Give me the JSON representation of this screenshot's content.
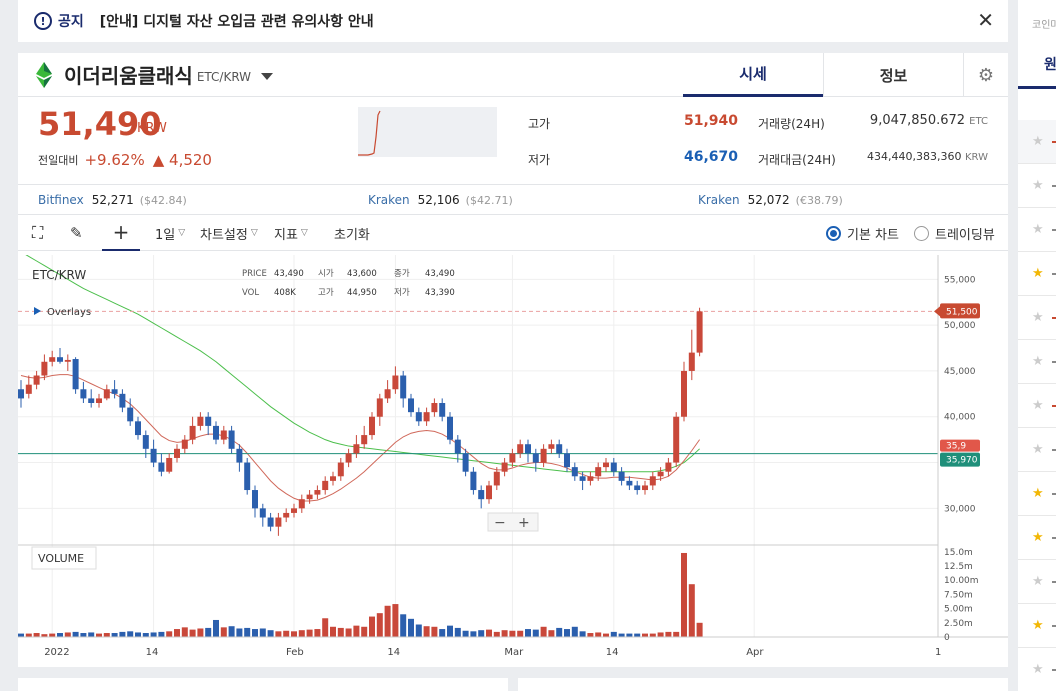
{
  "notice": {
    "label": "공지",
    "text": "[안내] 디지털 자산 오입금 관련 유의사항 안내"
  },
  "coin": {
    "name": "이더리움클래식",
    "pair": "ETC/KRW"
  },
  "tabs": {
    "sise": "시세",
    "info": "정보"
  },
  "price": {
    "current": "51,490",
    "unit": "KRW",
    "change_label": "전일대비",
    "change_pct": "+9.62%",
    "change_amt": "▲ 4,520",
    "high_label": "고가",
    "high": "51,940",
    "low_label": "저가",
    "low": "46,670",
    "vol_label": "거래량(24H)",
    "vol": "9,047,850.672",
    "vol_unit": "ETC",
    "amt_label": "거래대금(24H)",
    "amt": "434,440,383,360",
    "amt_unit": "KRW"
  },
  "exchanges": [
    {
      "name": "Bitfinex",
      "price": "52,271",
      "foreign": "($42.84)"
    },
    {
      "name": "Kraken",
      "price": "52,106",
      "foreign": "($42.71)"
    },
    {
      "name": "Kraken",
      "price": "52,072",
      "foreign": "(€38.79)"
    }
  ],
  "toolbar": {
    "interval": "1일",
    "chart_settings": "차트설정",
    "indicators": "지표",
    "reset": "초기화",
    "basic_chart": "기본 차트",
    "tradingview": "트레이딩뷰"
  },
  "chart_data": {
    "type": "candlestick",
    "symbol": "ETC/KRW",
    "overlays_label": "Overlays",
    "volume_label": "VOLUME",
    "legend": {
      "price_label": "PRICE",
      "price": "43,490",
      "open_label": "시가",
      "open": "43,600",
      "close_label": "종가",
      "close": "43,490",
      "vol_label": "VOL",
      "vol": "408K",
      "high_label": "고가",
      "high": "44,950",
      "low_label": "저가",
      "low": "43,390"
    },
    "ylim": [
      26000,
      57000
    ],
    "y_ticks": [
      "55,000",
      "50,000",
      "45,000",
      "40,000",
      "35,000",
      "30,000"
    ],
    "y_tick_values": [
      55000,
      50000,
      45000,
      40000,
      35000,
      30000
    ],
    "current_price_tag": "51,500",
    "current_price_value": 51500,
    "green_line_tag": "35,970",
    "green_line_value": 35970,
    "red_tag_partial": "35,9",
    "vol_ticks": [
      "15.0m",
      "12.5m",
      "10.00m",
      "7.50m",
      "5.00m",
      "2.50m",
      "0"
    ],
    "vol_tick_values": [
      15,
      12.5,
      10,
      7.5,
      5,
      2.5,
      0
    ],
    "vol_ylim": [
      0,
      15.5
    ],
    "x_labels": [
      "2022",
      "14",
      "Feb",
      "14",
      "Mar",
      "14",
      "Apr"
    ],
    "x_label_index": [
      4,
      17,
      35,
      48,
      63,
      76,
      94
    ],
    "candles": [
      [
        43,
        42,
        44,
        41
      ],
      [
        42.5,
        43.5,
        44.5,
        42
      ],
      [
        43.5,
        44.5,
        45,
        43
      ],
      [
        44.5,
        46,
        46.8,
        44
      ],
      [
        46,
        46.5,
        47.2,
        45.5
      ],
      [
        46.5,
        46,
        47.5,
        45.8
      ],
      [
        46,
        46.2,
        46.8,
        45
      ],
      [
        46.3,
        43,
        46.5,
        42.5
      ],
      [
        43,
        42,
        43.8,
        41.5
      ],
      [
        42,
        41.5,
        43,
        41
      ],
      [
        41.5,
        42,
        42.5,
        41
      ],
      [
        42,
        43,
        43.5,
        41.8
      ],
      [
        43,
        42.5,
        44,
        42
      ],
      [
        42.5,
        41,
        43,
        40.5
      ],
      [
        41,
        39.5,
        42,
        39
      ],
      [
        39.5,
        38,
        40,
        37.5
      ],
      [
        38,
        36.5,
        38.5,
        35.5
      ],
      [
        36.5,
        35,
        37.5,
        34.5
      ],
      [
        35,
        34,
        36,
        33.5
      ],
      [
        34,
        35.5,
        36,
        33.8
      ],
      [
        35.5,
        36.5,
        37,
        35
      ],
      [
        36.5,
        37.5,
        38,
        36
      ],
      [
        37.5,
        39,
        40,
        37
      ],
      [
        39,
        40,
        40.5,
        38.5
      ],
      [
        40,
        39,
        40.5,
        38
      ],
      [
        39,
        37.5,
        39.5,
        37
      ],
      [
        37.5,
        38.5,
        39,
        37
      ],
      [
        38.5,
        36.5,
        39,
        36
      ],
      [
        36.5,
        35,
        37,
        34
      ],
      [
        35,
        32,
        35.5,
        31.5
      ],
      [
        32,
        30,
        32.5,
        29
      ],
      [
        30,
        29,
        30.5,
        28
      ],
      [
        29,
        28,
        29.5,
        27.5
      ],
      [
        28,
        29,
        29.5,
        27
      ],
      [
        29,
        29.5,
        30,
        28.5
      ],
      [
        29.5,
        30,
        30.5,
        29
      ],
      [
        30,
        31,
        31.5,
        29.5
      ],
      [
        31,
        31.5,
        32,
        30.5
      ],
      [
        31.5,
        32,
        32.5,
        31
      ],
      [
        32,
        33,
        33.5,
        31.5
      ],
      [
        33,
        33.5,
        34,
        32.5
      ],
      [
        33.5,
        35,
        35.5,
        33
      ],
      [
        35,
        36,
        36.5,
        34.5
      ],
      [
        36,
        37,
        38,
        35.5
      ],
      [
        37,
        38,
        39,
        36.5
      ],
      [
        38,
        40,
        40.5,
        37.5
      ],
      [
        40,
        42,
        42.5,
        39
      ],
      [
        42,
        43,
        44,
        41.5
      ],
      [
        43,
        44.5,
        45.5,
        42.5
      ],
      [
        44.5,
        42,
        45,
        41
      ],
      [
        42,
        40.5,
        42.5,
        40
      ],
      [
        40.5,
        39.5,
        41,
        39
      ],
      [
        39.5,
        40.5,
        41,
        39
      ],
      [
        40.5,
        41.5,
        42,
        40
      ],
      [
        41.5,
        40,
        42,
        39.5
      ],
      [
        40,
        37.5,
        40.5,
        37
      ],
      [
        37.5,
        36,
        38,
        35
      ],
      [
        36,
        34,
        36.5,
        33.5
      ],
      [
        34,
        32,
        34.5,
        31.5
      ],
      [
        32,
        31,
        32.5,
        30
      ],
      [
        31,
        32.5,
        33,
        30.5
      ],
      [
        32.5,
        34,
        34.5,
        32
      ],
      [
        34,
        35,
        35.5,
        33.5
      ],
      [
        35,
        36,
        36.5,
        34.5
      ],
      [
        36,
        37,
        37.5,
        35.5
      ],
      [
        37,
        36,
        37.5,
        35
      ],
      [
        36,
        35,
        36.5,
        34
      ],
      [
        35,
        36.5,
        37,
        34.5
      ],
      [
        36.5,
        37,
        37.5,
        36
      ],
      [
        37,
        36,
        37.5,
        35.5
      ],
      [
        36,
        34.5,
        36.5,
        34
      ],
      [
        34.5,
        33.5,
        35,
        33
      ],
      [
        33.5,
        33,
        34,
        32
      ],
      [
        33,
        33.5,
        34,
        32.5
      ],
      [
        33.5,
        34.5,
        35,
        33
      ],
      [
        34.5,
        35,
        35.5,
        34
      ],
      [
        35,
        34,
        35.5,
        33.5
      ],
      [
        34,
        33,
        34.5,
        32.5
      ],
      [
        33,
        32.5,
        33.5,
        32
      ],
      [
        32.5,
        32,
        33,
        31.5
      ],
      [
        32,
        32.5,
        33,
        31.5
      ],
      [
        32.5,
        33.5,
        34,
        32
      ],
      [
        33.5,
        34,
        34.5,
        33
      ],
      [
        34,
        35,
        35.5,
        33.5
      ],
      [
        35,
        40,
        40.5,
        34.5
      ],
      [
        40,
        45,
        46,
        39.5
      ],
      [
        45,
        47,
        49.5,
        44
      ],
      [
        47,
        51.5,
        51.9,
        46.6
      ]
    ],
    "volumes": [
      0.6,
      0.6,
      0.7,
      0.5,
      0.6,
      0.7,
      0.8,
      0.9,
      0.7,
      0.8,
      0.6,
      0.7,
      0.7,
      0.9,
      1.0,
      0.8,
      0.7,
      0.8,
      0.9,
      1.0,
      1.4,
      1.7,
      1.3,
      1.5,
      1.6,
      3.0,
      1.7,
      1.9,
      1.5,
      1.6,
      1.4,
      1.5,
      1.2,
      1.0,
      1.1,
      1.0,
      1.2,
      1.3,
      1.4,
      3.3,
      1.8,
      1.6,
      1.5,
      2.0,
      1.8,
      3.6,
      4.2,
      5.5,
      5.8,
      4.0,
      3.2,
      2.2,
      1.9,
      1.8,
      1.4,
      2.0,
      1.6,
      1.1,
      1.0,
      1.2,
      1.3,
      0.9,
      1.2,
      1.1,
      1.1,
      1.4,
      1.3,
      1.8,
      1.2,
      1.6,
      1.4,
      1.8,
      1.0,
      0.7,
      0.8,
      0.6,
      0.9,
      0.6,
      0.6,
      0.6,
      0.6,
      0.6,
      0.8,
      0.9,
      0.9,
      14.8,
      9.3,
      2.5
    ],
    "sma_short": [
      44.5,
      44.3,
      44.2,
      44.3,
      44.5,
      44.6,
      44.6,
      44.4,
      44.0,
      43.6,
      43.2,
      42.8,
      42.5,
      42.0,
      41.4,
      40.6,
      39.7,
      38.8,
      37.9,
      37.4,
      37.2,
      37.3,
      37.6,
      37.9,
      38.1,
      38.1,
      37.9,
      37.5,
      36.9,
      36.0,
      35.0,
      34.0,
      33.0,
      32.2,
      31.6,
      31.1,
      30.8,
      30.8,
      30.9,
      31.2,
      31.6,
      32.1,
      32.7,
      33.3,
      34.0,
      34.8,
      35.6,
      36.4,
      37.2,
      37.8,
      38.2,
      38.4,
      38.5,
      38.4,
      38.1,
      37.6,
      37.0,
      36.3,
      35.6,
      34.9,
      34.4,
      34.2,
      34.2,
      34.4,
      34.7,
      34.9,
      35.0,
      35.0,
      34.9,
      34.7,
      34.4,
      34.0,
      33.7,
      33.4,
      33.3,
      33.3,
      33.4,
      33.4,
      33.4,
      33.3,
      33.2,
      33.1,
      33.2,
      33.5,
      34.2,
      35.2,
      36.3,
      37.5
    ],
    "sma_long": [
      58,
      57.5,
      57,
      56.5,
      56,
      55.5,
      55,
      54.5,
      54,
      53.6,
      53.2,
      52.8,
      52.4,
      52.0,
      51.6,
      51.2,
      50.7,
      50.2,
      49.7,
      49.2,
      48.7,
      48.2,
      47.7,
      47.2,
      46.6,
      46.0,
      45.3,
      44.6,
      43.9,
      43.2,
      42.5,
      41.8,
      41.1,
      40.5,
      39.9,
      39.3,
      38.8,
      38.3,
      37.9,
      37.5,
      37.2,
      37.0,
      36.8,
      36.7,
      36.6,
      36.5,
      36.4,
      36.3,
      36.2,
      36.1,
      36.0,
      35.9,
      35.8,
      35.7,
      35.6,
      35.5,
      35.4,
      35.3,
      35.2,
      35.1,
      35.0,
      34.9,
      34.8,
      34.7,
      34.6,
      34.5,
      34.4,
      34.3,
      34.2,
      34.1,
      34.0,
      34.0,
      34.0,
      34.0,
      34.0,
      34.0,
      34.0,
      34.0,
      34.0,
      34.0,
      34.0,
      34.0,
      34.1,
      34.3,
      34.6,
      35.0,
      35.7,
      36.5
    ]
  },
  "sidebar": {
    "top_text": "코인마켓",
    "tab": "원"
  }
}
